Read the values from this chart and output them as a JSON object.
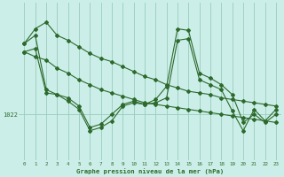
{
  "title": "Graphe pression niveau de la mer (hPa)",
  "bg_color": "#cceee8",
  "plot_bg_color": "#cceee8",
  "grid_color": "#99ccbb",
  "line_color": "#2d6a2d",
  "xlim": [
    -0.5,
    23.5
  ],
  "ylim": [
    1019.2,
    1028.8
  ],
  "ylabel_value": 1022,
  "xticks": [
    0,
    1,
    2,
    3,
    4,
    5,
    6,
    7,
    8,
    9,
    10,
    11,
    12,
    13,
    14,
    15,
    16,
    17,
    18,
    19,
    20,
    21,
    22,
    23
  ],
  "series": [
    [
      1026.3,
      1027.2,
      1027.6,
      1026.8,
      1026.5,
      1026.1,
      1025.7,
      1025.4,
      1025.2,
      1024.9,
      1024.6,
      1024.3,
      1024.1,
      1023.8,
      1023.6,
      1023.4,
      1023.3,
      1023.2,
      1023.0,
      1022.9,
      1022.8,
      1022.7,
      1022.6,
      1022.5
    ],
    [
      1025.8,
      1025.5,
      1025.3,
      1024.8,
      1024.5,
      1024.1,
      1023.8,
      1023.5,
      1023.3,
      1023.1,
      1022.9,
      1022.7,
      1022.6,
      1022.5,
      1022.4,
      1022.3,
      1022.2,
      1022.1,
      1022.0,
      1021.9,
      1021.8,
      1021.7,
      1021.6,
      1021.5
    ],
    [
      1026.3,
      1026.8,
      1023.5,
      1023.2,
      1022.8,
      1022.3,
      1021.0,
      1021.2,
      1021.6,
      1022.5,
      1022.7,
      1022.6,
      1022.9,
      1023.7,
      1027.2,
      1027.1,
      1024.5,
      1024.2,
      1023.8,
      1023.2,
      1021.5,
      1022.0,
      1021.5,
      1022.0
    ],
    [
      1025.8,
      1026.0,
      1023.3,
      1023.2,
      1023.0,
      1022.5,
      1021.2,
      1021.4,
      1022.0,
      1022.6,
      1022.8,
      1022.6,
      1022.7,
      1023.0,
      1026.5,
      1026.6,
      1024.1,
      1023.8,
      1023.5,
      1022.2,
      1021.0,
      1022.3,
      1021.6,
      1022.3
    ]
  ]
}
